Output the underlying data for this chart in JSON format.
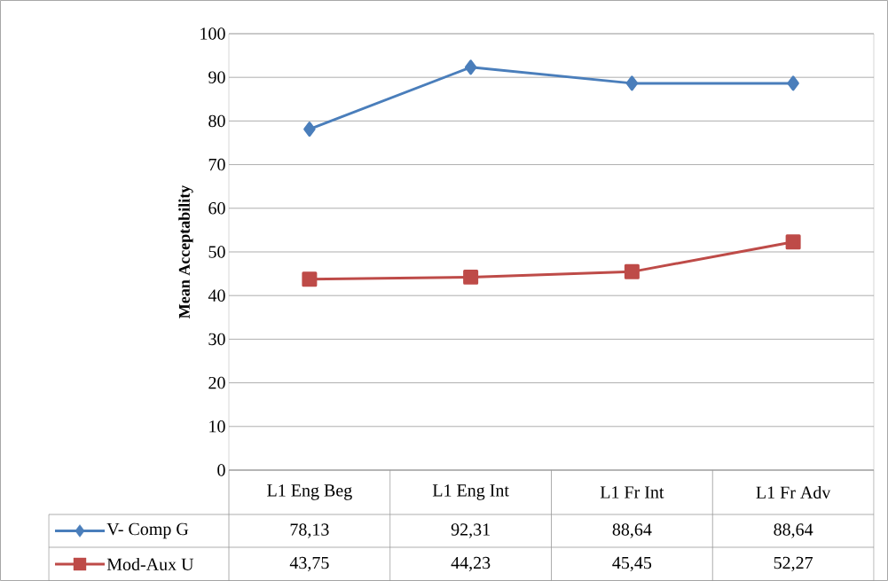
{
  "chart_data": {
    "type": "line",
    "ylabel": "Mean Acceptability",
    "categories": [
      "L1 Eng Beg",
      "L1 Eng Int",
      "L1 Fr Int",
      "L1 Fr Adv"
    ],
    "series": [
      {
        "name": "V- Comp G",
        "color": "#4a7ebb",
        "marker": "diamond",
        "values": [
          78.13,
          92.31,
          88.64,
          88.64
        ],
        "value_labels": [
          "78,13",
          "92,31",
          "88,64",
          "88,64"
        ]
      },
      {
        "name": "Mod-Aux U",
        "color": "#be4b48",
        "marker": "square",
        "values": [
          43.75,
          44.23,
          45.45,
          52.27
        ],
        "value_labels": [
          "43,75",
          "44,23",
          "45,45",
          "52,27"
        ]
      }
    ],
    "ylim": [
      0,
      100
    ],
    "yticks": [
      0,
      10,
      20,
      30,
      40,
      50,
      60,
      70,
      80,
      90,
      100
    ],
    "grid": "y",
    "legend": "bottom"
  }
}
